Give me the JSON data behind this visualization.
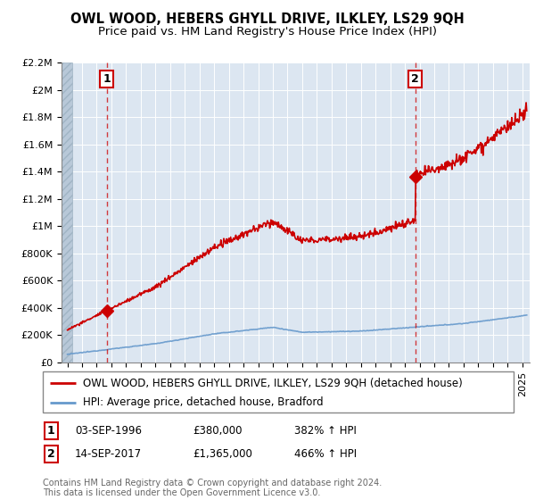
{
  "title": "OWL WOOD, HEBERS GHYLL DRIVE, ILKLEY, LS29 9QH",
  "subtitle": "Price paid vs. HM Land Registry's House Price Index (HPI)",
  "ylim": [
    0,
    2200000
  ],
  "xlim_left": 1993.6,
  "xlim_right": 2025.5,
  "yticks": [
    0,
    200000,
    400000,
    600000,
    800000,
    1000000,
    1200000,
    1400000,
    1600000,
    1800000,
    2000000,
    2200000
  ],
  "ytick_labels": [
    "£0",
    "£200K",
    "£400K",
    "£600K",
    "£800K",
    "£1M",
    "£1.2M",
    "£1.4M",
    "£1.6M",
    "£1.8M",
    "£2M",
    "£2.2M"
  ],
  "xticks": [
    1994,
    1995,
    1996,
    1997,
    1998,
    1999,
    2000,
    2001,
    2002,
    2003,
    2004,
    2005,
    2006,
    2007,
    2008,
    2009,
    2010,
    2011,
    2012,
    2013,
    2014,
    2015,
    2016,
    2017,
    2018,
    2019,
    2020,
    2021,
    2022,
    2023,
    2024,
    2025
  ],
  "sale1_x": 1996.67,
  "sale1_y": 380000,
  "sale1_label": "1",
  "sale2_x": 2017.71,
  "sale2_y": 1365000,
  "sale2_label": "2",
  "legend_line1": "OWL WOOD, HEBERS GHYLL DRIVE, ILKLEY, LS29 9QH (detached house)",
  "legend_line2": "HPI: Average price, detached house, Bradford",
  "table_row1": [
    "1",
    "03-SEP-1996",
    "£380,000",
    "382% ↑ HPI"
  ],
  "table_row2": [
    "2",
    "14-SEP-2017",
    "£1,365,000",
    "466% ↑ HPI"
  ],
  "footer": "Contains HM Land Registry data © Crown copyright and database right 2024.\nThis data is licensed under the Open Government Licence v3.0.",
  "red_color": "#cc0000",
  "blue_color": "#6699cc",
  "plot_bg": "#dce6f1",
  "hatch_color": "#b8c8d8",
  "title_fontsize": 10.5,
  "subtitle_fontsize": 9.5,
  "tick_fontsize": 8,
  "legend_fontsize": 8.5,
  "table_fontsize": 8.5,
  "footer_fontsize": 7
}
